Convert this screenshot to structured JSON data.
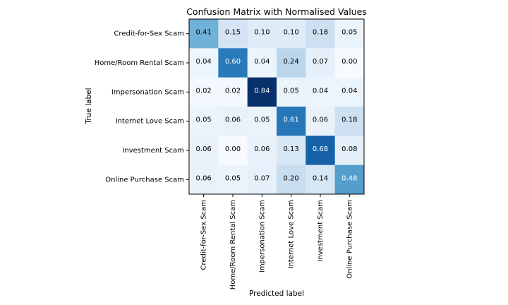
{
  "chart_data": {
    "type": "heatmap",
    "title": "Confusion Matrix with Normalised Values",
    "xlabel": "Predicted label",
    "ylabel": "True label",
    "row_labels": [
      "Credit-for-Sex Scam",
      "Home/Room Rental Scam",
      "Impersonation Scam",
      "Internet Love Scam",
      "Investment Scam",
      "Online Purchase Scam"
    ],
    "col_labels": [
      "Credit-for-Sex Scam",
      "Home/Room Rental Scam",
      "Impersonation Scam",
      "Internet Love Scam",
      "Investment Scam",
      "Online Purchase Scam"
    ],
    "values": [
      [
        0.41,
        0.15,
        0.1,
        0.1,
        0.18,
        0.05
      ],
      [
        0.04,
        0.6,
        0.04,
        0.24,
        0.07,
        0.0
      ],
      [
        0.02,
        0.02,
        0.84,
        0.05,
        0.04,
        0.04
      ],
      [
        0.05,
        0.06,
        0.05,
        0.61,
        0.06,
        0.18
      ],
      [
        0.06,
        0.0,
        0.06,
        0.13,
        0.68,
        0.08
      ],
      [
        0.06,
        0.05,
        0.07,
        0.2,
        0.14,
        0.48
      ]
    ],
    "colormap": "Blues",
    "grid": false,
    "legend": "none"
  }
}
